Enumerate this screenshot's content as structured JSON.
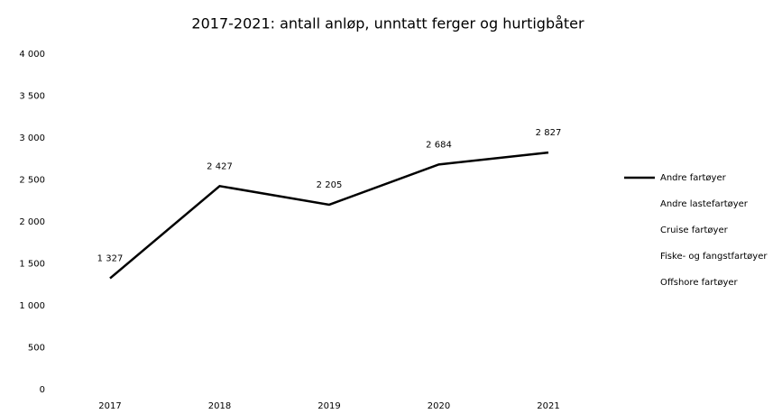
{
  "chart_data": {
    "type": "line",
    "title": "2017-2021: antall anløp, unntatt ferger og hurtigbåter",
    "categories": [
      "2017",
      "2018",
      "2019",
      "2020",
      "2021"
    ],
    "series": [
      {
        "name": "Andre fartøyer",
        "color": "#000000",
        "values": [
          1327,
          2427,
          2205,
          2684,
          2827
        ],
        "value_labels": [
          "1 327",
          "2 427",
          "2 205",
          "2 684",
          "2 827"
        ]
      },
      {
        "name": "Andre lastefartøyer",
        "color": "#ffffff",
        "values": [
          null,
          null,
          null,
          null,
          null
        ]
      },
      {
        "name": "Cruise fartøyer",
        "color": "#ffffff",
        "values": [
          null,
          null,
          null,
          null,
          null
        ]
      },
      {
        "name": "Fiske- og fangstfartøyer",
        "color": "#ffffff",
        "values": [
          null,
          null,
          null,
          null,
          null
        ]
      },
      {
        "name": "Offshore fartøyer",
        "color": "#ffffff",
        "values": [
          null,
          null,
          null,
          null,
          null
        ]
      }
    ],
    "ylim": [
      0,
      4000
    ],
    "yticks": [
      0,
      500,
      {
        "value": 1000,
        "label": "1 000"
      },
      {
        "value": 1500,
        "label": "1 500"
      },
      {
        "value": 2000,
        "label": "2 000"
      },
      {
        "value": 2500,
        "label": "2 500"
      },
      {
        "value": 3000,
        "label": "3 000"
      },
      {
        "value": 3500,
        "label": "3 500"
      },
      {
        "value": 4000,
        "label": "4 000"
      }
    ],
    "grid": false,
    "legend": "right"
  }
}
